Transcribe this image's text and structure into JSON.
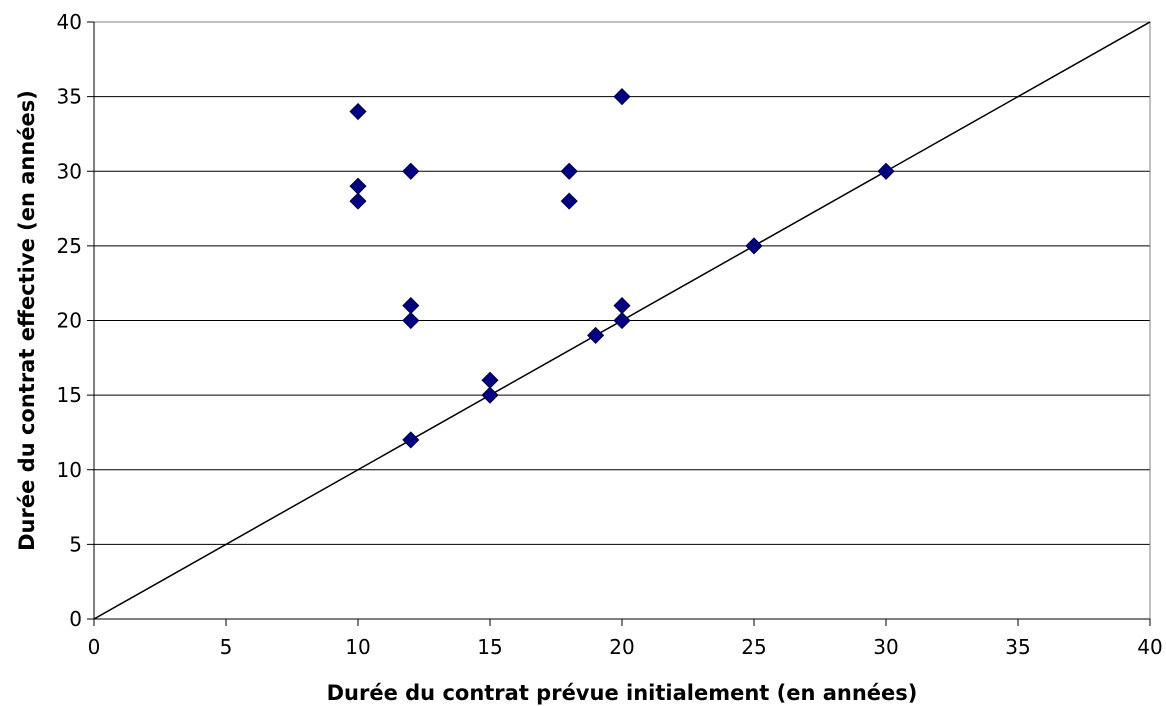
{
  "chart_data": {
    "type": "scatter",
    "title": "",
    "xlabel": "Durée du contrat prévue initialement (en années)",
    "ylabel": "Durée du contrat effective (en années)",
    "xlim": [
      0,
      40
    ],
    "ylim": [
      0,
      40
    ],
    "xticks": [
      0,
      5,
      10,
      15,
      20,
      25,
      30,
      35,
      40
    ],
    "yticks": [
      0,
      5,
      10,
      15,
      20,
      25,
      30,
      35,
      40
    ],
    "grid": "horizontal",
    "marker": "diamond",
    "marker_color": "#000080",
    "reference_line": {
      "from": [
        0,
        0
      ],
      "to": [
        40,
        40
      ]
    },
    "series": [
      {
        "points": [
          [
            10,
            34
          ],
          [
            10,
            29
          ],
          [
            10,
            28
          ],
          [
            12,
            30
          ],
          [
            12,
            21
          ],
          [
            12,
            20
          ],
          [
            12,
            12
          ],
          [
            15,
            16
          ],
          [
            15,
            15
          ],
          [
            18,
            30
          ],
          [
            18,
            28
          ],
          [
            19,
            19
          ],
          [
            20,
            35
          ],
          [
            20,
            21
          ],
          [
            20,
            20
          ],
          [
            25,
            25
          ],
          [
            30,
            30
          ]
        ]
      }
    ]
  }
}
